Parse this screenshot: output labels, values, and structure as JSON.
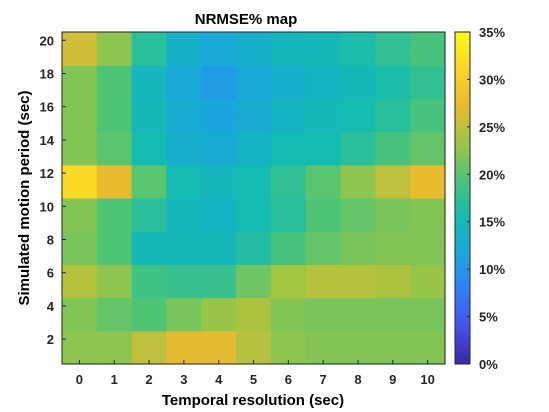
{
  "chart_data": {
    "type": "heatmap",
    "title": "NRMSE% map",
    "xlabel": "Temporal resolution (sec)",
    "ylabel": "Simulated motion period (sec)",
    "x": [
      0,
      1,
      2,
      3,
      4,
      5,
      6,
      7,
      8,
      9,
      10
    ],
    "y": [
      1,
      2,
      3,
      4,
      5,
      6,
      7,
      8,
      9,
      10,
      11,
      12,
      13,
      14,
      15,
      16,
      17,
      18,
      19,
      20
    ],
    "xticks": [
      "0",
      "1",
      "2",
      "3",
      "4",
      "5",
      "6",
      "7",
      "8",
      "9",
      "10"
    ],
    "yticks": [
      "2",
      "4",
      "6",
      "8",
      "10",
      "12",
      "14",
      "16",
      "18",
      "20"
    ],
    "z": [
      [
        22.5,
        22.5,
        25.0,
        27.0,
        27.0,
        24.5,
        22.5,
        22.0,
        22.0,
        22.0,
        22.0
      ],
      [
        22.5,
        22.5,
        25.0,
        27.0,
        27.0,
        24.5,
        22.5,
        22.0,
        22.0,
        22.0,
        22.0
      ],
      [
        22.0,
        20.5,
        19.5,
        21.5,
        23.0,
        24.0,
        22.0,
        21.5,
        21.5,
        21.5,
        21.5
      ],
      [
        22.0,
        20.5,
        19.5,
        21.5,
        23.0,
        24.0,
        22.0,
        21.5,
        21.5,
        21.5,
        21.5
      ],
      [
        24.5,
        22.5,
        18.5,
        18.0,
        18.0,
        21.0,
        23.5,
        24.5,
        24.5,
        24.0,
        23.0
      ],
      [
        24.5,
        22.5,
        18.5,
        18.0,
        18.0,
        21.0,
        23.5,
        24.5,
        24.5,
        24.0,
        23.0
      ],
      [
        21.5,
        19.5,
        15.0,
        15.0,
        15.0,
        16.5,
        19.0,
        20.5,
        21.5,
        22.0,
        22.0
      ],
      [
        21.5,
        19.5,
        15.0,
        15.0,
        15.0,
        16.5,
        19.0,
        20.5,
        21.5,
        22.0,
        22.0
      ],
      [
        22.0,
        19.5,
        17.0,
        14.5,
        14.0,
        15.5,
        17.0,
        19.5,
        20.5,
        21.5,
        22.0
      ],
      [
        22.0,
        19.5,
        17.0,
        14.5,
        14.0,
        15.5,
        17.0,
        19.5,
        20.5,
        21.5,
        22.0
      ],
      [
        31.5,
        27.5,
        20.0,
        15.5,
        14.5,
        15.5,
        17.5,
        20.0,
        22.5,
        25.0,
        27.5
      ],
      [
        31.5,
        27.5,
        20.0,
        15.5,
        14.5,
        15.5,
        17.5,
        20.0,
        22.5,
        25.0,
        27.5
      ],
      [
        22.0,
        20.0,
        15.5,
        13.0,
        12.5,
        14.0,
        15.5,
        15.5,
        17.0,
        19.0,
        20.5
      ],
      [
        22.0,
        20.0,
        15.5,
        13.0,
        12.5,
        14.0,
        15.5,
        15.5,
        17.0,
        19.0,
        20.5
      ],
      [
        22.0,
        19.5,
        15.0,
        12.5,
        11.5,
        12.5,
        14.0,
        15.0,
        15.5,
        17.0,
        19.0
      ],
      [
        22.0,
        19.5,
        15.0,
        12.5,
        11.5,
        12.5,
        14.0,
        15.0,
        15.5,
        17.0,
        19.0
      ],
      [
        22.0,
        19.5,
        14.5,
        12.0,
        10.5,
        12.0,
        13.0,
        14.0,
        15.0,
        16.0,
        17.5
      ],
      [
        22.0,
        19.5,
        14.5,
        12.0,
        10.5,
        12.0,
        13.0,
        14.0,
        15.0,
        16.0,
        17.5
      ],
      [
        26.0,
        22.5,
        17.0,
        13.5,
        12.0,
        13.0,
        14.5,
        15.0,
        16.0,
        17.5,
        19.0
      ],
      [
        26.0,
        22.5,
        17.0,
        13.5,
        12.0,
        13.0,
        14.5,
        15.0,
        16.0,
        17.5,
        19.0
      ]
    ],
    "colorbar": {
      "min": 0,
      "max": 35,
      "ticks": [
        "0%",
        "5%",
        "10%",
        "15%",
        "20%",
        "25%",
        "30%",
        "35%"
      ],
      "colormap": "parula",
      "colormap_stops": [
        "#3e26a8",
        "#4452e8",
        "#2f7ff8",
        "#1aa8dc",
        "#14bbb0",
        "#4dc576",
        "#9fc543",
        "#e8ba30",
        "#fbd627",
        "#f9fb15"
      ]
    },
    "xlim": [
      -0.5,
      10.5
    ],
    "ylim": [
      0.5,
      20.5
    ],
    "grid": false
  }
}
